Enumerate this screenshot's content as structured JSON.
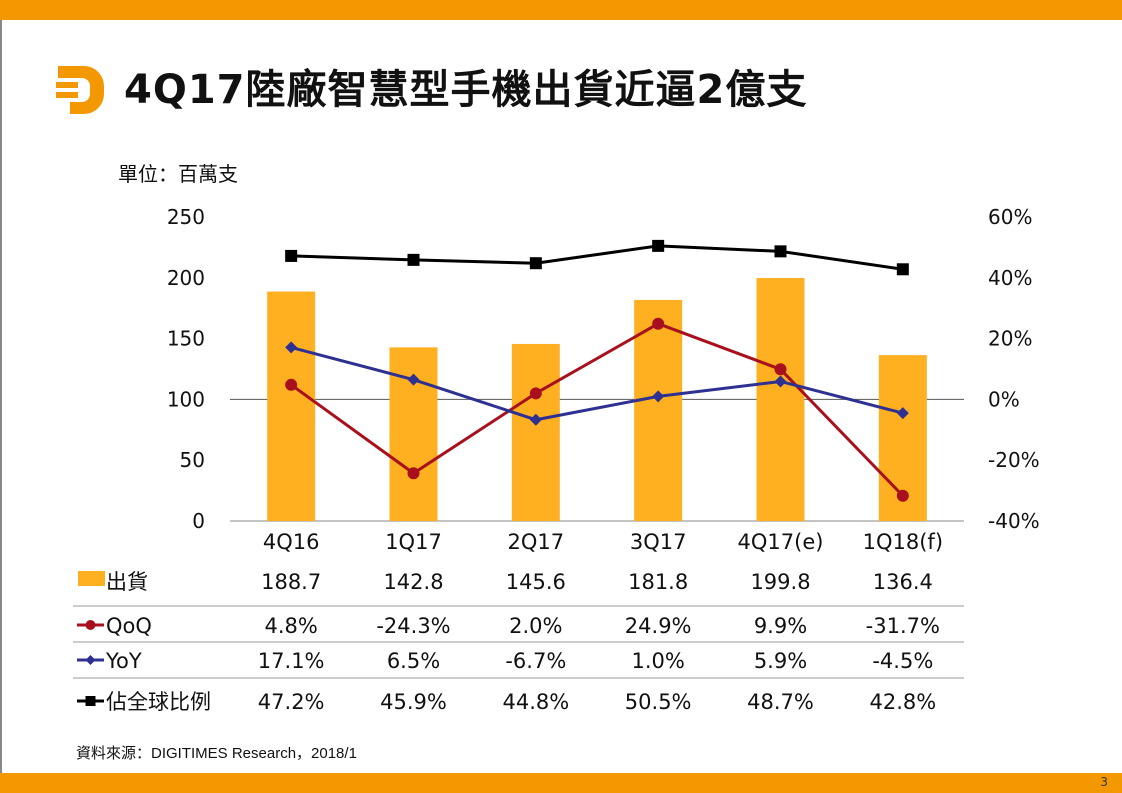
{
  "header": {
    "title": "4Q17陸廠智慧型手機出貨近逼2億支",
    "logo": "digitimes-d-logo-icon",
    "unit_label": "單位：百萬支"
  },
  "footer": {
    "source": "資料來源：DIGITIMES Research，2018/1",
    "page_number": "3"
  },
  "colors": {
    "accent": "#F39800",
    "bar": "#FFB020",
    "qoq": "#A8101E",
    "yoy": "#2E3192",
    "share": "#000000"
  },
  "chart_data": {
    "type": "bar",
    "title": "4Q17陸廠智慧型手機出貨近逼2億支",
    "ylabel": "單位：百萬支",
    "categories": [
      "4Q16",
      "1Q17",
      "2Q17",
      "3Q17",
      "4Q17(e)",
      "1Q18(f)"
    ],
    "left_axis": {
      "ylim": [
        0,
        250
      ],
      "ticks": [
        "0",
        "50",
        "100",
        "150",
        "200",
        "250"
      ]
    },
    "right_axis": {
      "ylim": [
        -40,
        60
      ],
      "ticks": [
        "-40%",
        "-20%",
        "0%",
        "20%",
        "40%",
        "60%"
      ]
    },
    "series": [
      {
        "name": "出貨",
        "type": "bar",
        "axis": "left",
        "values": [
          188.7,
          142.8,
          145.6,
          181.8,
          199.8,
          136.4
        ],
        "labels": [
          "188.7",
          "142.8",
          "145.6",
          "181.8",
          "199.8",
          "136.4"
        ]
      },
      {
        "name": "QoQ",
        "type": "line",
        "marker": "circle",
        "axis": "right",
        "values": [
          4.8,
          -24.3,
          2.0,
          24.9,
          9.9,
          -31.7
        ],
        "labels": [
          "4.8%",
          "-24.3%",
          "2.0%",
          "24.9%",
          "9.9%",
          "-31.7%"
        ]
      },
      {
        "name": "YoY",
        "type": "line",
        "marker": "diamond",
        "axis": "right",
        "values": [
          17.1,
          6.5,
          -6.7,
          1.0,
          5.9,
          -4.5
        ],
        "labels": [
          "17.1%",
          "6.5%",
          "-6.7%",
          "1.0%",
          "5.9%",
          "-4.5%"
        ]
      },
      {
        "name": "佔全球比例",
        "type": "line",
        "marker": "square",
        "axis": "right",
        "values": [
          47.2,
          45.9,
          44.8,
          50.5,
          48.7,
          42.8
        ],
        "labels": [
          "47.2%",
          "45.9%",
          "44.8%",
          "50.5%",
          "48.7%",
          "42.8%"
        ]
      }
    ],
    "legend": "data-table-below",
    "grid": false
  }
}
